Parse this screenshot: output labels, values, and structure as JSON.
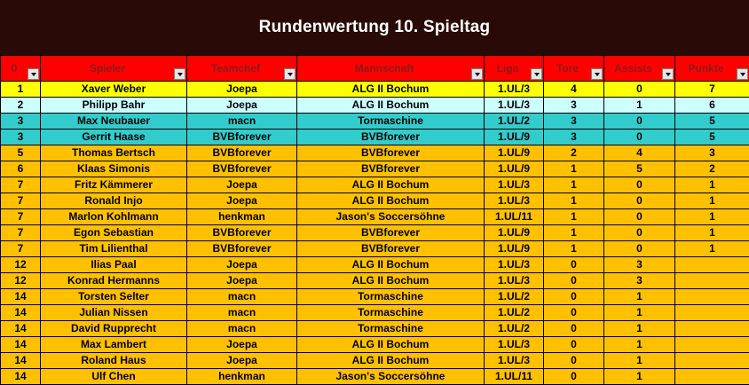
{
  "title": "Rundenwertung 10. Spieltag",
  "columns": [
    "0",
    "Spieler",
    "Teamchef",
    "Mannschaft",
    "Liga",
    "Tore",
    "Assists",
    "Punkte"
  ],
  "row_colors": {
    "yellow": "#ffff00",
    "light": "#ccffff",
    "cyan": "#33cccc",
    "orange": "#ffc000",
    "header": "#ff0000"
  },
  "rows": [
    {
      "rank": "1",
      "spieler": "Xaver Weber",
      "teamchef": "Joepa",
      "mannschaft": "ALG II Bochum",
      "liga": "1.UL/3",
      "tore": "4",
      "assists": "0",
      "punkte": "7",
      "color": "yellow"
    },
    {
      "rank": "2",
      "spieler": "Philipp Bahr",
      "teamchef": "Joepa",
      "mannschaft": "ALG II Bochum",
      "liga": "1.UL/3",
      "tore": "3",
      "assists": "1",
      "punkte": "6",
      "color": "light"
    },
    {
      "rank": "3",
      "spieler": "Max Neubauer",
      "teamchef": "macn",
      "mannschaft": "Tormaschine",
      "liga": "1.UL/2",
      "tore": "3",
      "assists": "0",
      "punkte": "5",
      "color": "cyan"
    },
    {
      "rank": "3",
      "spieler": "Gerrit Haase",
      "teamchef": "BVBforever",
      "mannschaft": "BVBforever",
      "liga": "1.UL/9",
      "tore": "3",
      "assists": "0",
      "punkte": "5",
      "color": "cyan"
    },
    {
      "rank": "5",
      "spieler": "Thomas Bertsch",
      "teamchef": "BVBforever",
      "mannschaft": "BVBforever",
      "liga": "1.UL/9",
      "tore": "2",
      "assists": "4",
      "punkte": "3",
      "color": "orange"
    },
    {
      "rank": "6",
      "spieler": "Klaas Simonis",
      "teamchef": "BVBforever",
      "mannschaft": "BVBforever",
      "liga": "1.UL/9",
      "tore": "1",
      "assists": "5",
      "punkte": "2",
      "color": "orange"
    },
    {
      "rank": "7",
      "spieler": "Fritz Kämmerer",
      "teamchef": "Joepa",
      "mannschaft": "ALG II Bochum",
      "liga": "1.UL/3",
      "tore": "1",
      "assists": "0",
      "punkte": "1",
      "color": "orange"
    },
    {
      "rank": "7",
      "spieler": "Ronald Injo",
      "teamchef": "Joepa",
      "mannschaft": "ALG II Bochum",
      "liga": "1.UL/3",
      "tore": "1",
      "assists": "0",
      "punkte": "1",
      "color": "orange"
    },
    {
      "rank": "7",
      "spieler": "Marlon Kohlmann",
      "teamchef": "henkman",
      "mannschaft": "Jason's Soccersöhne",
      "liga": "1.UL/11",
      "tore": "1",
      "assists": "0",
      "punkte": "1",
      "color": "orange"
    },
    {
      "rank": "7",
      "spieler": "Egon Sebastian",
      "teamchef": "BVBforever",
      "mannschaft": "BVBforever",
      "liga": "1.UL/9",
      "tore": "1",
      "assists": "0",
      "punkte": "1",
      "color": "orange"
    },
    {
      "rank": "7",
      "spieler": "Tim Lilienthal",
      "teamchef": "BVBforever",
      "mannschaft": "BVBforever",
      "liga": "1.UL/9",
      "tore": "1",
      "assists": "0",
      "punkte": "1",
      "color": "orange"
    },
    {
      "rank": "12",
      "spieler": "Ilias Paal",
      "teamchef": "Joepa",
      "mannschaft": "ALG II Bochum",
      "liga": "1.UL/3",
      "tore": "0",
      "assists": "3",
      "punkte": "",
      "color": "orange"
    },
    {
      "rank": "12",
      "spieler": "Konrad Hermanns",
      "teamchef": "Joepa",
      "mannschaft": "ALG II Bochum",
      "liga": "1.UL/3",
      "tore": "0",
      "assists": "3",
      "punkte": "",
      "color": "orange"
    },
    {
      "rank": "14",
      "spieler": "Torsten Selter",
      "teamchef": "macn",
      "mannschaft": "Tormaschine",
      "liga": "1.UL/2",
      "tore": "0",
      "assists": "1",
      "punkte": "",
      "color": "orange"
    },
    {
      "rank": "14",
      "spieler": "Julian Nissen",
      "teamchef": "macn",
      "mannschaft": "Tormaschine",
      "liga": "1.UL/2",
      "tore": "0",
      "assists": "1",
      "punkte": "",
      "color": "orange"
    },
    {
      "rank": "14",
      "spieler": "David Rupprecht",
      "teamchef": "macn",
      "mannschaft": "Tormaschine",
      "liga": "1.UL/2",
      "tore": "0",
      "assists": "1",
      "punkte": "",
      "color": "orange"
    },
    {
      "rank": "14",
      "spieler": "Max Lambert",
      "teamchef": "Joepa",
      "mannschaft": "ALG II Bochum",
      "liga": "1.UL/3",
      "tore": "0",
      "assists": "1",
      "punkte": "",
      "color": "orange"
    },
    {
      "rank": "14",
      "spieler": "Roland Haus",
      "teamchef": "Joepa",
      "mannschaft": "ALG II Bochum",
      "liga": "1.UL/3",
      "tore": "0",
      "assists": "1",
      "punkte": "",
      "color": "orange"
    },
    {
      "rank": "14",
      "spieler": "Ulf Chen",
      "teamchef": "henkman",
      "mannschaft": "Jason's Soccersöhne",
      "liga": "1.UL/11",
      "tore": "0",
      "assists": "1",
      "punkte": "",
      "color": "orange"
    }
  ]
}
